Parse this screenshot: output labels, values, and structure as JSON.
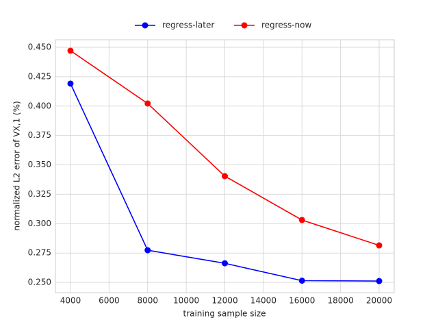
{
  "chart_data": {
    "type": "line",
    "x_label": "training sample size",
    "y_label": "normalized L2 error of VX,1 (%)",
    "x": [
      4000,
      8000,
      12000,
      16000,
      20000
    ],
    "series": [
      {
        "name": "regress-later",
        "color": "#0000ff",
        "values": [
          0.4191,
          0.2774,
          0.2663,
          0.2515,
          0.2512
        ]
      },
      {
        "name": "regress-now",
        "color": "#ff0000",
        "values": [
          0.4471,
          0.4022,
          0.3404,
          0.3031,
          0.2815
        ]
      }
    ],
    "xlim": [
      3220,
      20780
    ],
    "xticks": [
      4000,
      6000,
      8000,
      10000,
      12000,
      14000,
      16000,
      18000,
      20000
    ],
    "ylim": [
      0.2413,
      0.4564
    ],
    "yticks": [
      {
        "value": 0.25,
        "label": "0.250"
      },
      {
        "value": 0.275,
        "label": "0.275"
      },
      {
        "value": 0.3,
        "label": "0.300"
      },
      {
        "value": 0.325,
        "label": "0.325"
      },
      {
        "value": 0.35,
        "label": "0.350"
      },
      {
        "value": 0.375,
        "label": "0.375"
      },
      {
        "value": 0.4,
        "label": "0.400"
      },
      {
        "value": 0.425,
        "label": "0.425"
      },
      {
        "value": 0.45,
        "label": "0.450"
      }
    ],
    "grid": true,
    "legend": "top"
  }
}
